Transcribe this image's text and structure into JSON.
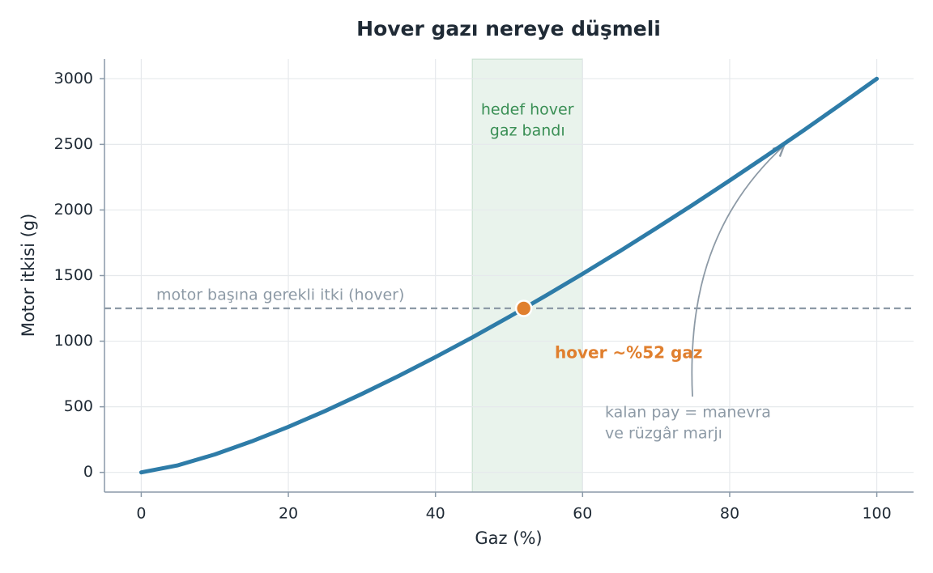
{
  "chart_data": {
    "type": "line",
    "title": "Hover gazı nereye düşmeli",
    "xlabel": "Gaz (%)",
    "ylabel": "Motor itkisi (g)",
    "x": [
      0,
      5,
      10,
      15,
      20,
      25,
      30,
      35,
      40,
      45,
      50,
      55,
      60,
      65,
      70,
      75,
      80,
      85,
      90,
      95,
      100
    ],
    "values": [
      0,
      54,
      137,
      236,
      347,
      468,
      598,
      735,
      879,
      1029,
      1185,
      1347,
      1513,
      1684,
      1860,
      2040,
      2225,
      2413,
      2605,
      2801,
      3000
    ],
    "color": "#2e7ca8",
    "xlim": [
      -5,
      105
    ],
    "ylim": [
      -150,
      3150
    ],
    "xticks": [
      0,
      20,
      40,
      60,
      80,
      100
    ],
    "yticks": [
      0,
      500,
      1000,
      1500,
      2000,
      2500,
      3000
    ],
    "grid": true,
    "band": {
      "range": [
        45,
        60
      ],
      "color": "#3a8f55",
      "label": [
        "hedef hover",
        "gaz bandı"
      ]
    },
    "hover_line": {
      "value": 1250,
      "label": "motor başına gerekli itki (hover)",
      "color": "#8d9aa6"
    },
    "hover_point": {
      "x": 52,
      "y": 1250,
      "color": "#e07f2e",
      "label": "hover ~%52 gaz"
    },
    "margin_note": [
      "kalan pay = manevra",
      "ve rüzgâr marjı"
    ]
  }
}
